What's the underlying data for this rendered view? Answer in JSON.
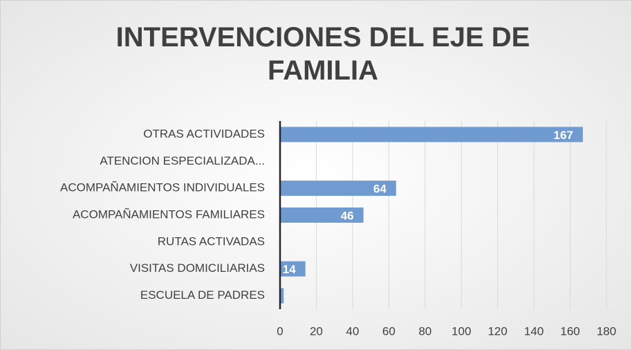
{
  "chart_data": {
    "type": "barh",
    "title": "INTERVENCIONES DEL EJE DE FAMILIA",
    "categories": [
      "OTRAS ACTIVIDADES",
      "ATENCION ESPECIALIZADA...",
      "ACOMPAÑAMIENTOS INDIVIDUALES",
      "ACOMPAÑAMIENTOS FAMILIARES",
      "RUTAS ACTIVADAS",
      "VISITAS DOMICILIARIAS",
      "ESCUELA DE PADRES"
    ],
    "values": [
      167,
      0,
      64,
      46,
      0,
      14,
      2
    ],
    "value_labels": [
      "167",
      null,
      "64",
      "46",
      null,
      "14",
      null
    ],
    "color": "#6f9bd1",
    "xlim": [
      0,
      180
    ],
    "xticks": [
      0,
      20,
      40,
      60,
      80,
      100,
      120,
      140,
      160,
      180
    ],
    "grid": true
  }
}
